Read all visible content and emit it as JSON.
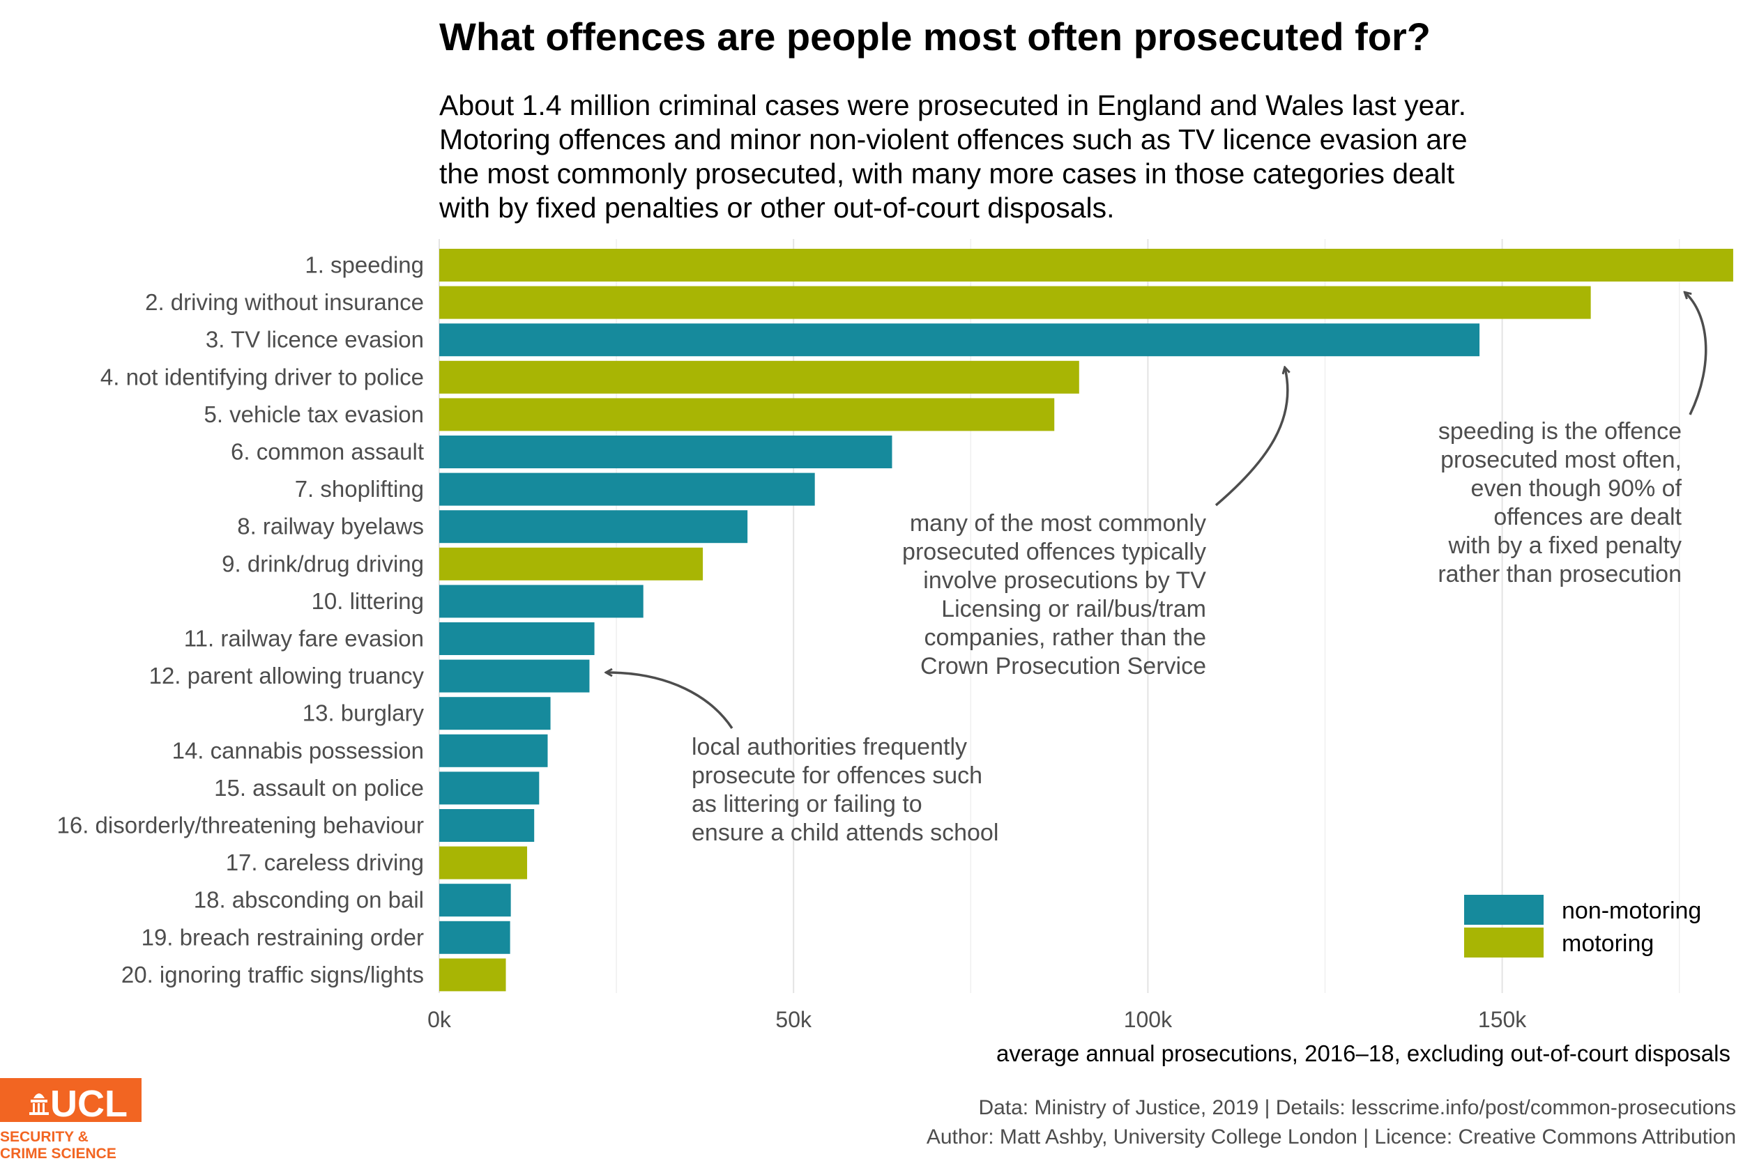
{
  "chart_data": {
    "type": "bar",
    "orientation": "horizontal",
    "title": "What offences are people most often prosecuted for?",
    "subtitle": [
      "About 1.4 million criminal cases were prosecuted in England and Wales last year.",
      "Motoring offences and minor non-violent offences such as TV licence evasion are",
      "the most commonly prosecuted, with many more cases in those categories dealt",
      "with by fixed penalties or other out-of-court disposals."
    ],
    "xlabel": "average annual prosecutions, 2016–18, excluding out-of-court disposals",
    "xlim": [
      0,
      183000
    ],
    "xticks": [
      0,
      50000,
      100000,
      150000
    ],
    "xtick_labels": [
      "0k",
      "50k",
      "100k",
      "150k"
    ],
    "grid": true,
    "categories": [
      "1. speeding",
      "2. driving without insurance",
      "3. TV licence evasion",
      "4. not identifying driver to police",
      "5. vehicle tax evasion",
      "6. common assault",
      "7. shoplifting",
      "8. railway byelaws",
      "9. drink/drug driving",
      "10. littering",
      "11. railway fare evasion",
      "12. parent allowing truancy",
      "13. burglary",
      "14. cannabis possession",
      "15. assault on police",
      "16. disorderly/threatening behaviour",
      "17. careless driving",
      "18. absconding on bail",
      "19. breach restraining order",
      "20. ignoring traffic signs/lights"
    ],
    "values": [
      182600,
      162500,
      146800,
      90300,
      86800,
      63900,
      53000,
      43500,
      37200,
      28800,
      21900,
      21200,
      15700,
      15300,
      14100,
      13400,
      12400,
      10100,
      10000,
      9400
    ],
    "groups": [
      "motoring",
      "motoring",
      "non-motoring",
      "motoring",
      "motoring",
      "non-motoring",
      "non-motoring",
      "non-motoring",
      "motoring",
      "non-motoring",
      "non-motoring",
      "non-motoring",
      "non-motoring",
      "non-motoring",
      "non-motoring",
      "non-motoring",
      "motoring",
      "non-motoring",
      "non-motoring",
      "motoring"
    ],
    "legend": {
      "placement": "bottom-right",
      "entries": [
        {
          "name": "non-motoring",
          "color": "#168a9c"
        },
        {
          "name": "motoring",
          "color": "#a8b504"
        }
      ]
    },
    "annotations": [
      {
        "lines": [
          "speeding is the offence",
          "prosecuted most often,",
          "even though 90% of",
          "offences are dealt",
          "with by a fixed penalty",
          "rather than prosecution"
        ],
        "points_to": "1. speeding"
      },
      {
        "lines": [
          "many of the most commonly",
          "prosecuted offences typically",
          "involve prosecutions by TV",
          "Licensing or rail/bus/tram",
          "companies, rather than the",
          "Crown Prosecution Service"
        ],
        "points_to": "3. TV licence evasion"
      },
      {
        "lines": [
          "local authorities frequently",
          "prosecute for offences such",
          "as littering or failing to",
          "ensure a child attends school"
        ],
        "points_to": "12. parent allowing truancy"
      }
    ]
  },
  "caption": {
    "line1": "Data: Ministry of Justice, 2019 |  Details: lesscrime.info/post/common-prosecutions",
    "line2": "Author: Matt Ashby, University College London |  Licence: Creative Commons Attribution"
  },
  "logo": {
    "brand": "UCL",
    "line1": "SECURITY &",
    "line2": "CRIME SCIENCE",
    "color": "#f26522"
  },
  "colors": {
    "non_motoring": "#168a9c",
    "motoring": "#a8b504",
    "annotation": "#4d4d4d"
  }
}
